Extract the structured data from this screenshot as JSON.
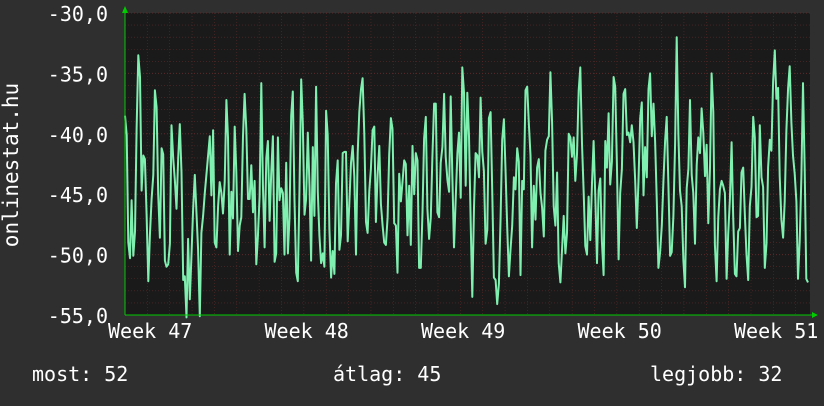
{
  "chart_data": {
    "type": "line",
    "ylabel": "onlinestat.hu",
    "xlabel": "",
    "title": "",
    "ylim": [
      -55,
      -30
    ],
    "yticks": [
      "-30,0",
      "-35,0",
      "-40,0",
      "-45,0",
      "-50,0",
      "-55,0"
    ],
    "xticks": [
      "Week 47",
      "Week 48",
      "Week 49",
      "Week 50",
      "Week 51"
    ],
    "grid": true,
    "colors": {
      "background": "#2f2f2f",
      "plot_area": "#1a1a1a",
      "grid": "#5a2a2a",
      "line": "#7ff0b0",
      "axis_arrow": "#00cc00"
    },
    "series": [
      {
        "values": [
          -38.5,
          -40.1,
          -49.0,
          -50.3,
          -45.5,
          -50.1,
          -48.1,
          -39.6,
          -33.5,
          -35.3,
          -44.7,
          -41.8,
          -42.1,
          -46.7,
          -52.2,
          -48.4,
          -45.4,
          -43.4,
          -36.4,
          -37.8,
          -45.0,
          -48.6,
          -41.2,
          -41.7,
          -50.5,
          -51.0,
          -50.8,
          -49.1,
          -39.3,
          -42.0,
          -43.9,
          -46.2,
          -42.0,
          -39.2,
          -43.2,
          -52.1,
          -51.8,
          -55.2,
          -48.7,
          -53.7,
          -50.0,
          -46.3,
          -43.4,
          -46.6,
          -49.6,
          -55.1,
          -48.2,
          -46.8,
          -44.9,
          -43.4,
          -41.8,
          -40.2,
          -45.1,
          -39.7,
          -49.0,
          -49.4,
          -46.0,
          -44.0,
          -44.9,
          -46.6,
          -44.0,
          -37.2,
          -40.3,
          -50.0,
          -44.8,
          -47.0,
          -39.4,
          -43.1,
          -49.7,
          -47.6,
          -46.9,
          -40.2,
          -36.7,
          -39.6,
          -45.4,
          -45.4,
          -42.6,
          -46.5,
          -43.9,
          -50.8,
          -48.5,
          -45.2,
          -35.8,
          -44.2,
          -49.4,
          -42.0,
          -40.6,
          -47.2,
          -43.3,
          -40.2,
          -50.6,
          -49.9,
          -40.3,
          -45.5,
          -44.5,
          -44.9,
          -50.0,
          -42.4,
          -49.9,
          -46.9,
          -38.5,
          -36.5,
          -45.5,
          -51.5,
          -52.2,
          -44.5,
          -35.5,
          -39.1,
          -46.7,
          -45.4,
          -39.9,
          -44.3,
          -50.5,
          -41.1,
          -46.8,
          -36.1,
          -44.8,
          -48.4,
          -50.7,
          -49.9,
          -51.0,
          -38.1,
          -40.1,
          -47.9,
          -51.9,
          -49.7,
          -51.6,
          -44.1,
          -42.2,
          -49.6,
          -48.4,
          -41.6,
          -41.5,
          -41.5,
          -48.9,
          -45.8,
          -42.4,
          -41.0,
          -43.5,
          -50.0,
          -41.6,
          -38.2,
          -36.3,
          -35.4,
          -40.0,
          -47.3,
          -48.2,
          -44.7,
          -42.9,
          -39.7,
          -39.4,
          -47.3,
          -43.4,
          -41.0,
          -45.8,
          -47.6,
          -49.0,
          -49.2,
          -46.9,
          -41.7,
          -38.7,
          -39.6,
          -47.4,
          -47.6,
          -51.5,
          -43.3,
          -45.6,
          -44.0,
          -42.2,
          -42.5,
          -48.4,
          -44.3,
          -49.2,
          -41.0,
          -45.0,
          -41.6,
          -42.2,
          -51.1,
          -51.1,
          -46.5,
          -40.4,
          -38.6,
          -46.2,
          -48.7,
          -46.9,
          -41.9,
          -37.5,
          -37.5,
          -46.5,
          -46.9,
          -42.4,
          -41.1,
          -36.7,
          -41.9,
          -43.8,
          -44.8,
          -36.9,
          -43.7,
          -49.4,
          -45.4,
          -41.6,
          -39.9,
          -45.3,
          -34.5,
          -36.6,
          -44.3,
          -36.6,
          -40.2,
          -47.4,
          -53.5,
          -46.1,
          -41.6,
          -41.8,
          -43.6,
          -37.0,
          -41.5,
          -43.1,
          -49.1,
          -47.9,
          -38.7,
          -38.2,
          -45.0,
          -51.9,
          -52.1,
          -54.1,
          -52.4,
          -46.9,
          -40.5,
          -38.8,
          -43.2,
          -47.7,
          -51.8,
          -49.6,
          -47.6,
          -43.6,
          -44.6,
          -41.2,
          -42.3,
          -51.7,
          -43.9,
          -44.6,
          -36.4,
          -36.1,
          -39.1,
          -41.8,
          -49.4,
          -44.3,
          -47.1,
          -42.8,
          -42.1,
          -44.9,
          -46.1,
          -48.5,
          -41.4,
          -40.5,
          -40.2,
          -34.9,
          -39.1,
          -46.0,
          -47.6,
          -43.2,
          -50.7,
          -52.3,
          -49.5,
          -46.8,
          -49.9,
          -48.2,
          -40.0,
          -40.3,
          -41.9,
          -40.3,
          -43.9,
          -41.7,
          -36.4,
          -34.5,
          -40.8,
          -44.9,
          -49.3,
          -50.0,
          -45.2,
          -48.8,
          -44.1,
          -40.6,
          -45.2,
          -50.7,
          -44.7,
          -43.7,
          -48.9,
          -51.7,
          -40.6,
          -42.8,
          -38.3,
          -44.2,
          -42.3,
          -35.3,
          -36.1,
          -42.5,
          -50.4,
          -44.9,
          -42.9,
          -36.7,
          -36.3,
          -40.1,
          -39.9,
          -40.7,
          -39.3,
          -40.7,
          -43.9,
          -47.8,
          -43.9,
          -38.7,
          -37.4,
          -45.1,
          -41.1,
          -43.6,
          -36.3,
          -35.0,
          -40.2,
          -37.5,
          -40.6,
          -45.6,
          -51.1,
          -49.8,
          -47.6,
          -44.0,
          -40.6,
          -38.6,
          -44.2,
          -50.1,
          -49.8,
          -46.8,
          -40.8,
          -32.0,
          -40.1,
          -44.7,
          -46.0,
          -50.5,
          -52.7,
          -44.5,
          -42.9,
          -37.2,
          -43.4,
          -44.9,
          -49.1,
          -42.6,
          -40.3,
          -41.6,
          -37.9,
          -39.9,
          -43.5,
          -40.9,
          -47.4,
          -42.8,
          -35.0,
          -38.2,
          -49.2,
          -52.2,
          -46.9,
          -44.6,
          -43.9,
          -44.3,
          -44.9,
          -52.0,
          -48.3,
          -45.4,
          -40.7,
          -46.9,
          -51.6,
          -51.8,
          -48.1,
          -47.8,
          -43.2,
          -42.8,
          -46.8,
          -50.0,
          -52.1,
          -46.0,
          -44.4,
          -38.6,
          -40.3,
          -46.9,
          -46.8,
          -39.3,
          -43.6,
          -44.4,
          -51.1,
          -49.1,
          -42.8,
          -40.5,
          -41.4,
          -35.7,
          -33.1,
          -37.1,
          -36.2,
          -43.5,
          -47.1,
          -48.6,
          -45.6,
          -39.7,
          -36.2,
          -34.4,
          -39.1,
          -41.8,
          -43.3,
          -45.6,
          -52.0,
          -48.9,
          -43.5,
          -35.8,
          -43.0,
          -52.0,
          -52.3
        ]
      }
    ]
  },
  "stats": {
    "now_label": "most:",
    "now_value": "52",
    "avg_label": "átlag:",
    "avg_value": "45",
    "best_label": "legjobb:",
    "best_value": "32"
  }
}
